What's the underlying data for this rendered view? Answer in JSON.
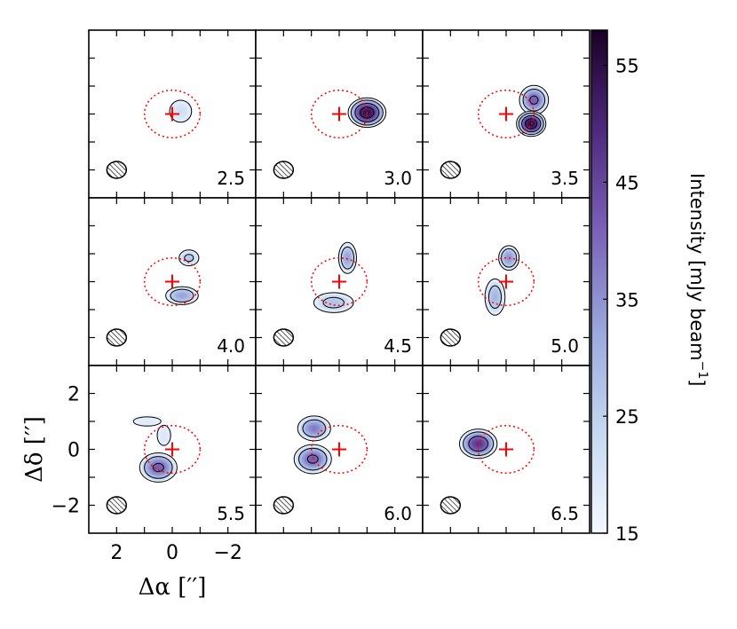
{
  "chart_data": {
    "type": "heatmap",
    "subtype": "channel-map-contours",
    "panels": [
      {
        "velocity": "2.5",
        "blobs": [
          {
            "x": -0.3,
            "y": 0.1,
            "sx": 0.3,
            "sy": 0.3,
            "peak": 22
          }
        ],
        "contour_levels": [
          17
        ]
      },
      {
        "velocity": "3.0",
        "blobs": [
          {
            "x": -1.0,
            "y": 0.05,
            "sx": 0.45,
            "sy": 0.35,
            "peak": 55
          }
        ],
        "contour_levels": [
          17,
          28,
          40,
          50
        ]
      },
      {
        "velocity": "3.5",
        "blobs": [
          {
            "x": -1.0,
            "y": 0.5,
            "sx": 0.35,
            "sy": 0.35,
            "peak": 42
          },
          {
            "x": -0.9,
            "y": -0.35,
            "sx": 0.35,
            "sy": 0.3,
            "peak": 56
          }
        ],
        "contour_levels": [
          17,
          28,
          40,
          50
        ]
      },
      {
        "velocity": "4.0",
        "blobs": [
          {
            "x": -0.6,
            "y": 0.85,
            "sx": 0.25,
            "sy": 0.2,
            "peak": 27
          },
          {
            "x": -0.35,
            "y": -0.5,
            "sx": 0.4,
            "sy": 0.22,
            "peak": 33
          }
        ],
        "contour_levels": [
          17,
          25
        ]
      },
      {
        "velocity": "4.5",
        "blobs": [
          {
            "x": -0.3,
            "y": 0.85,
            "sx": 0.22,
            "sy": 0.38,
            "peak": 33
          },
          {
            "x": 0.2,
            "y": -0.75,
            "sx": 0.5,
            "sy": 0.25,
            "peak": 28
          }
        ],
        "contour_levels": [
          17,
          25
        ]
      },
      {
        "velocity": "5.0",
        "blobs": [
          {
            "x": -0.1,
            "y": 0.85,
            "sx": 0.25,
            "sy": 0.3,
            "peak": 35
          },
          {
            "x": 0.4,
            "y": -0.55,
            "sx": 0.25,
            "sy": 0.45,
            "peak": 30
          }
        ],
        "contour_levels": [
          17,
          25
        ]
      },
      {
        "velocity": "5.5",
        "blobs": [
          {
            "x": 0.9,
            "y": 1.0,
            "sx": 0.45,
            "sy": 0.15,
            "peak": 19
          },
          {
            "x": 0.3,
            "y": 0.5,
            "sx": 0.2,
            "sy": 0.3,
            "peak": 20
          },
          {
            "x": 0.5,
            "y": -0.65,
            "sx": 0.45,
            "sy": 0.35,
            "peak": 42
          }
        ],
        "contour_levels": [
          17,
          28,
          40
        ]
      },
      {
        "velocity": "6.0",
        "blobs": [
          {
            "x": 0.9,
            "y": 0.75,
            "sx": 0.4,
            "sy": 0.3,
            "peak": 38
          },
          {
            "x": 0.95,
            "y": -0.35,
            "sx": 0.45,
            "sy": 0.35,
            "peak": 42
          }
        ],
        "contour_levels": [
          17,
          28,
          40
        ]
      },
      {
        "velocity": "6.5",
        "blobs": [
          {
            "x": 1.0,
            "y": 0.2,
            "sx": 0.45,
            "sy": 0.35,
            "peak": 48
          }
        ],
        "contour_levels": [
          17,
          28,
          40
        ]
      }
    ],
    "center_marker": {
      "x": 0,
      "y": 0,
      "ellipse_rx": 1.0,
      "ellipse_ry": 0.85
    },
    "beam": {
      "x": 2.0,
      "y": -2.0,
      "rx": 0.35,
      "ry": 0.3
    },
    "xlabel": "Δα [′′]",
    "ylabel": "Δδ [′′]",
    "xlim": [
      3,
      -3
    ],
    "ylim": [
      -3,
      3
    ],
    "xticks": [
      "2",
      "0",
      "−2"
    ],
    "yticks": [
      "2",
      "0",
      "−2"
    ],
    "colorbar": {
      "label": "Intensity  [mJy beam",
      "label_sup": "−1",
      "label_close": "]",
      "range": [
        15,
        58
      ],
      "ticks": [
        15,
        25,
        35,
        45,
        55
      ]
    }
  },
  "colors": {
    "marker": "#ff0000",
    "contour": "#000000",
    "low": "#f4f9ff",
    "high": "#1a0025"
  }
}
